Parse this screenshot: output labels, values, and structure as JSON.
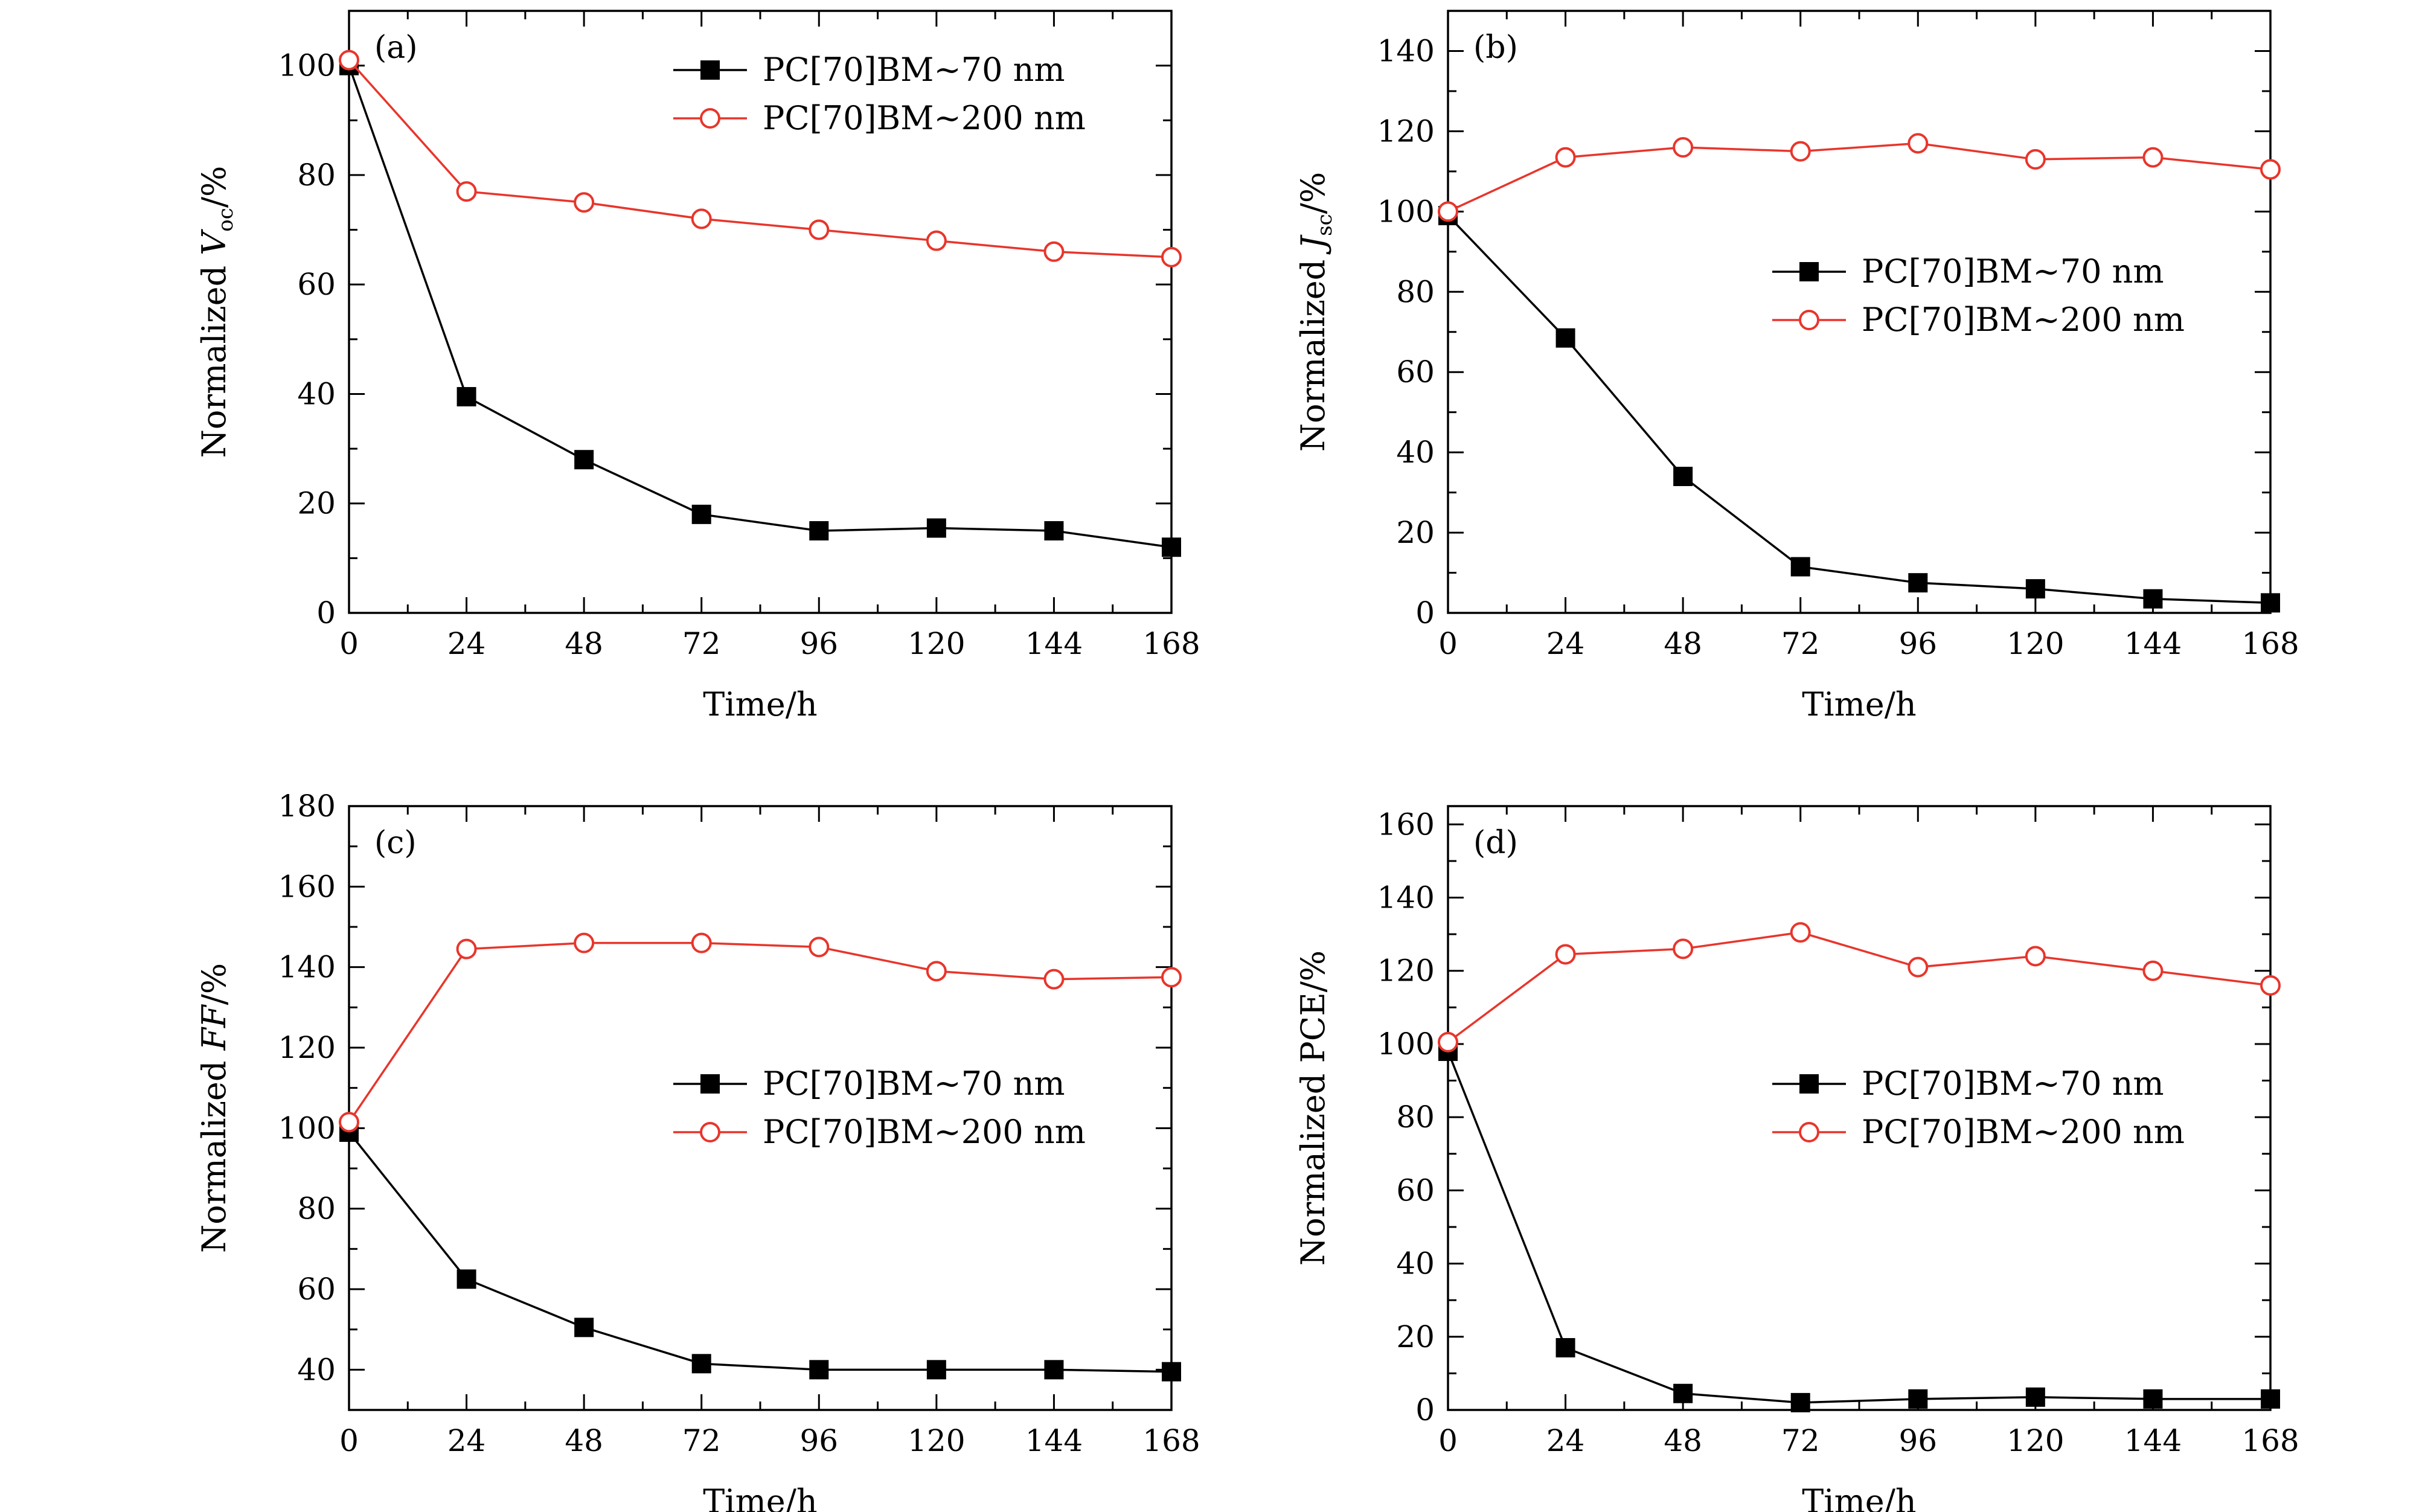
{
  "chart_data": [
    {
      "type": "line",
      "panel_label": "(a)",
      "ylabel": {
        "prefix": "Normalized ",
        "var": "V",
        "sub": "oc",
        "suffix": "/%"
      },
      "xlabel": "Time/h",
      "x": [
        0,
        24,
        48,
        72,
        96,
        120,
        144,
        168
      ],
      "xlim": [
        0,
        168
      ],
      "ylim": [
        0,
        110
      ],
      "yticks": [
        0,
        20,
        40,
        60,
        80,
        100
      ],
      "legend_position": "top-right",
      "series": [
        {
          "name": "PC[70]BM~70 nm",
          "color": "#000000",
          "marker": "filled-square",
          "values": [
            100,
            39.5,
            28,
            18,
            15,
            15.5,
            15,
            12
          ]
        },
        {
          "name": "PC[70]BM~200 nm",
          "color": "#e8352b",
          "marker": "open-circle",
          "values": [
            101,
            77,
            75,
            72,
            70,
            68,
            66,
            65
          ]
        }
      ]
    },
    {
      "type": "line",
      "panel_label": "(b)",
      "ylabel": {
        "prefix": "Normalized ",
        "var": "J",
        "sub": "sc",
        "suffix": "/%"
      },
      "xlabel": "Time/h",
      "x": [
        0,
        24,
        48,
        72,
        96,
        120,
        144,
        168
      ],
      "xlim": [
        0,
        168
      ],
      "ylim": [
        0,
        150
      ],
      "yticks": [
        0,
        20,
        40,
        60,
        80,
        100,
        120,
        140
      ],
      "legend_position": "center-right",
      "series": [
        {
          "name": "PC[70]BM~70 nm",
          "color": "#000000",
          "marker": "filled-square",
          "values": [
            99,
            68.5,
            34,
            11.5,
            7.5,
            6,
            3.5,
            2.5
          ]
        },
        {
          "name": "PC[70]BM~200 nm",
          "color": "#e8352b",
          "marker": "open-circle",
          "values": [
            100,
            113.5,
            116,
            115,
            117,
            113,
            113.5,
            110.5
          ]
        }
      ]
    },
    {
      "type": "line",
      "panel_label": "(c)",
      "ylabel": {
        "prefix": "Normalized ",
        "var": "FF",
        "sub": "",
        "suffix": "/%"
      },
      "xlabel": "Time/h",
      "x": [
        0,
        24,
        48,
        72,
        96,
        120,
        144,
        168
      ],
      "xlim": [
        0,
        168
      ],
      "ylim": [
        30,
        180
      ],
      "yticks": [
        40,
        60,
        80,
        100,
        120,
        140,
        160,
        180
      ],
      "legend_position": "center-right",
      "series": [
        {
          "name": "PC[70]BM~70 nm",
          "color": "#000000",
          "marker": "filled-square",
          "values": [
            99,
            62.5,
            50.5,
            41.5,
            40,
            40,
            40,
            39.5
          ]
        },
        {
          "name": "PC[70]BM~200 nm",
          "color": "#e8352b",
          "marker": "open-circle",
          "values": [
            101.5,
            144.5,
            146,
            146,
            145,
            139,
            137,
            137.5
          ]
        }
      ]
    },
    {
      "type": "line",
      "panel_label": "(d)",
      "ylabel": {
        "prefix": "Normalized PCE/%",
        "var": "",
        "sub": "",
        "suffix": ""
      },
      "xlabel": "Time/h",
      "x": [
        0,
        24,
        48,
        72,
        96,
        120,
        144,
        168
      ],
      "xlim": [
        0,
        168
      ],
      "ylim": [
        0,
        165
      ],
      "yticks": [
        0,
        20,
        40,
        60,
        80,
        100,
        120,
        140,
        160
      ],
      "legend_position": "center-right",
      "series": [
        {
          "name": "PC[70]BM~70 nm",
          "color": "#000000",
          "marker": "filled-square",
          "values": [
            98,
            17,
            4.5,
            2,
            3,
            3.5,
            3,
            3
          ]
        },
        {
          "name": "PC[70]BM~200 nm",
          "color": "#e8352b",
          "marker": "open-circle",
          "values": [
            100.5,
            124.5,
            126,
            130.5,
            121,
            124,
            120,
            116
          ]
        }
      ]
    }
  ]
}
